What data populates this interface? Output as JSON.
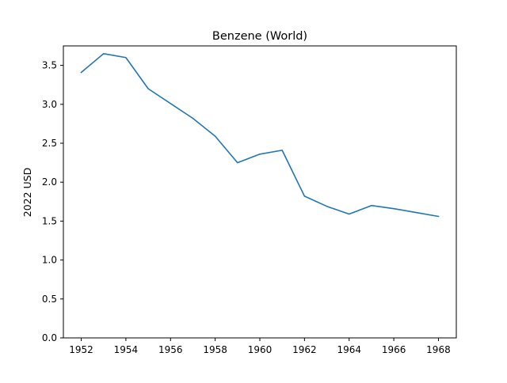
{
  "chart_data": {
    "type": "line",
    "title": "Benzene (World)",
    "xlabel": "",
    "ylabel": "2022 USD",
    "xlim": [
      1951.2,
      1968.8
    ],
    "ylim": [
      0.0,
      3.75
    ],
    "x_ticks": [
      1952,
      1954,
      1956,
      1958,
      1960,
      1962,
      1964,
      1966,
      1968
    ],
    "y_ticks": [
      0.0,
      0.5,
      1.0,
      1.5,
      2.0,
      2.5,
      3.0,
      3.5
    ],
    "grid": false,
    "series": [
      {
        "color": "#1f77b4",
        "x": [
          1952,
          1953,
          1954,
          1955,
          1956,
          1957,
          1958,
          1959,
          1960,
          1961,
          1962,
          1963,
          1964,
          1965,
          1966,
          1967,
          1968
        ],
        "y": [
          3.41,
          3.65,
          3.6,
          3.2,
          3.01,
          2.82,
          2.59,
          2.25,
          2.36,
          2.41,
          1.82,
          1.69,
          1.59,
          1.7,
          1.66,
          1.61,
          1.56
        ]
      }
    ]
  }
}
